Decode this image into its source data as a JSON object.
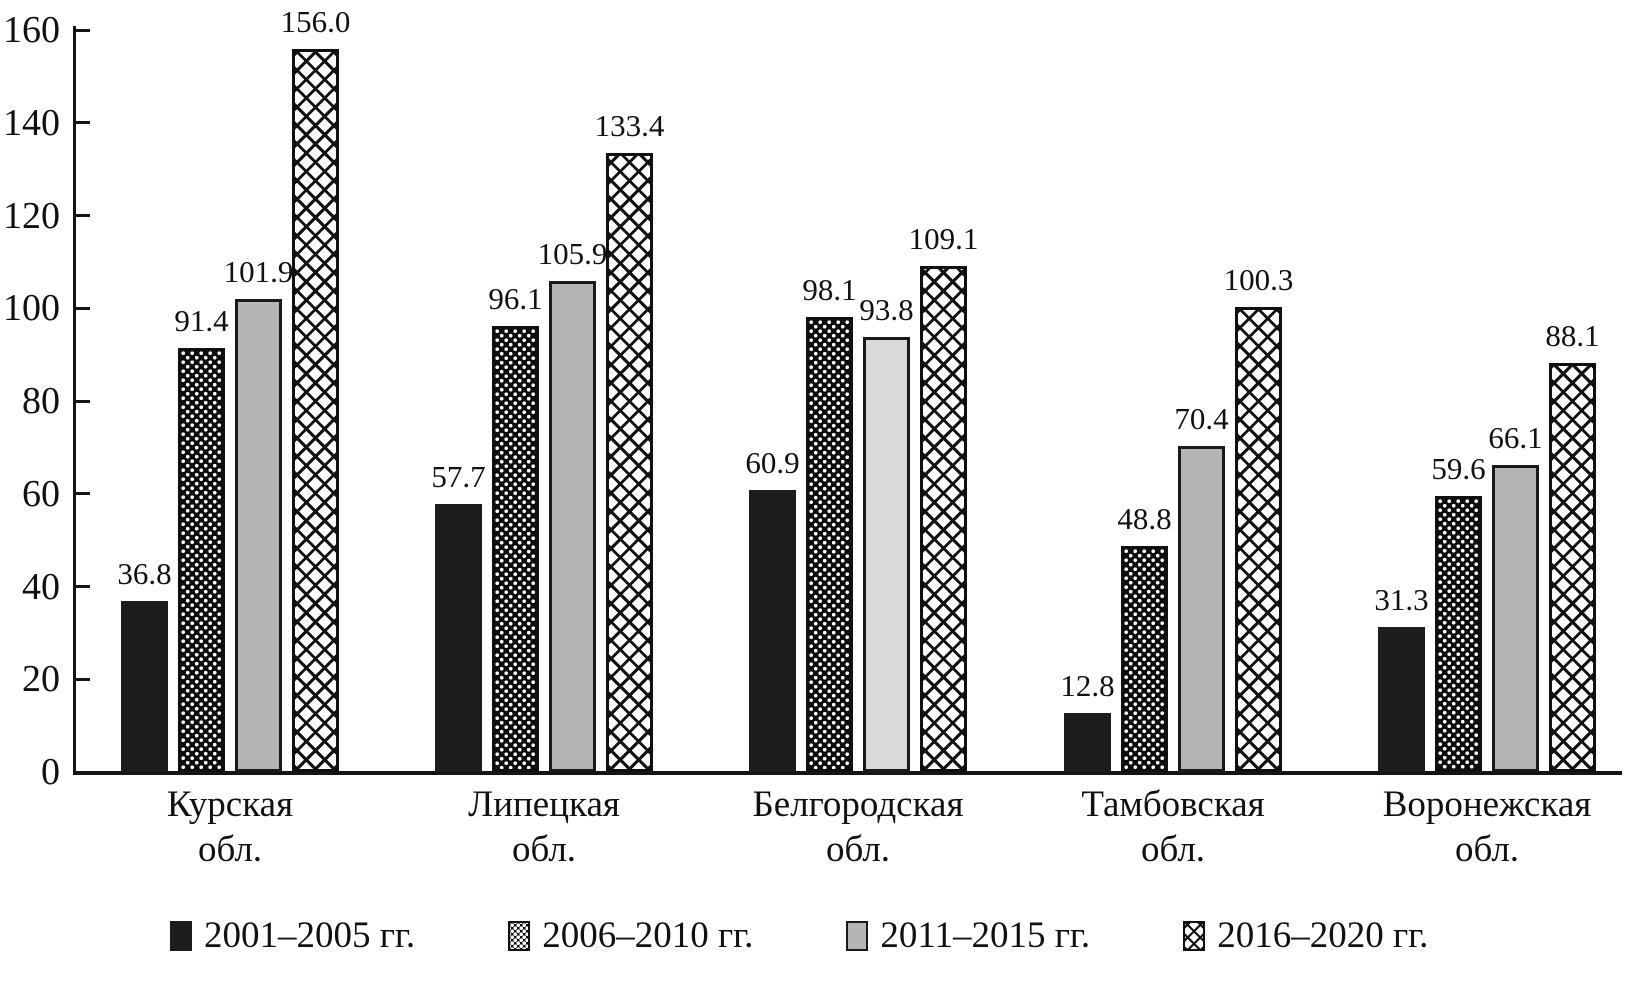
{
  "chart_data": {
    "type": "bar",
    "title": "",
    "categories": [
      "Курская обл.",
      "Липецкая обл.",
      "Белгородская обл.",
      "Тамбовская обл.",
      "Воронежская обл."
    ],
    "category_lines": [
      [
        "Курская",
        "обл."
      ],
      [
        "Липецкая",
        "обл."
      ],
      [
        "Белгородская",
        "обл."
      ],
      [
        "Тамбовская",
        "обл."
      ],
      [
        "Воронежская",
        "обл."
      ]
    ],
    "series": [
      {
        "name": "2001–2005 гг.",
        "pattern": "solid",
        "values": [
          36.8,
          57.7,
          60.9,
          12.8,
          31.3
        ]
      },
      {
        "name": "2006–2010 гг.",
        "pattern": "dots",
        "values": [
          91.4,
          96.1,
          98.1,
          48.8,
          59.6
        ]
      },
      {
        "name": "2011–2015 гг.",
        "pattern": "gray",
        "values": [
          101.9,
          105.9,
          93.8,
          70.4,
          66.1
        ]
      },
      {
        "name": "2016–2020 гг.",
        "pattern": "weave",
        "values": [
          156.0,
          133.4,
          109.1,
          100.3,
          88.1
        ]
      }
    ],
    "value_labels": [
      [
        "36.8",
        "57.7",
        "60.9",
        "12.8",
        "31.3"
      ],
      [
        "91.4",
        "96.1",
        "98.1",
        "48.8",
        "59.6"
      ],
      [
        "101.9",
        "105.9",
        "93.8",
        "70.4",
        "66.1"
      ],
      [
        "156.0",
        "133.4",
        "109.1",
        "100.3",
        "88.1"
      ]
    ],
    "ylim": [
      0,
      160
    ],
    "yticks": [
      0,
      20,
      40,
      60,
      80,
      100,
      120,
      140,
      160
    ],
    "xlabel": "",
    "ylabel": "",
    "grid": false,
    "legend_position": "bottom",
    "bar_color_overrides": [
      {
        "series_index": 2,
        "category_index": 2,
        "color": "#d9d9d9"
      }
    ],
    "colors": {
      "bar_black": "#1c1c1c",
      "bar_gray": "#b5b5b5",
      "bar_gray_light": "#d9d9d9",
      "pattern_ink": "#101010",
      "background": "#ffffff",
      "text": "#111111"
    }
  }
}
